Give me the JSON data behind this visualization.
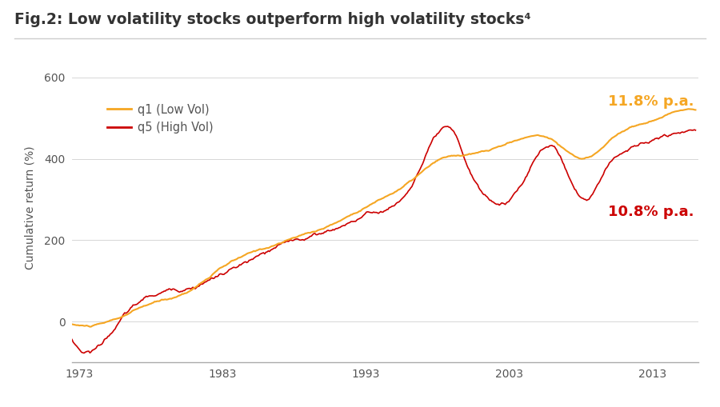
{
  "title": "Fig.2: Low volatility stocks outperform high volatility stocks⁴",
  "ylabel": "Cumulative return (%)",
  "xlim": [
    1972.5,
    2016.2
  ],
  "ylim": [
    -100,
    660
  ],
  "yticks": [
    -100,
    0,
    200,
    400,
    600
  ],
  "ytick_labels": [
    "",
    "0",
    "200",
    "400",
    "600"
  ],
  "xticks": [
    1973,
    1983,
    1993,
    2003,
    2013
  ],
  "legend_labels": [
    "q1 (Low Vol)",
    "q5 (High Vol)"
  ],
  "low_vol_color": "#F5A623",
  "high_vol_color": "#CC0000",
  "annotation_low_vol": "11.8% p.a.",
  "annotation_high_vol": "10.8% p.a.",
  "annotation_low_vol_color": "#F5A623",
  "annotation_high_vol_color": "#CC0000",
  "background_color": "#FFFFFF",
  "title_color": "#333333",
  "seed": 42
}
